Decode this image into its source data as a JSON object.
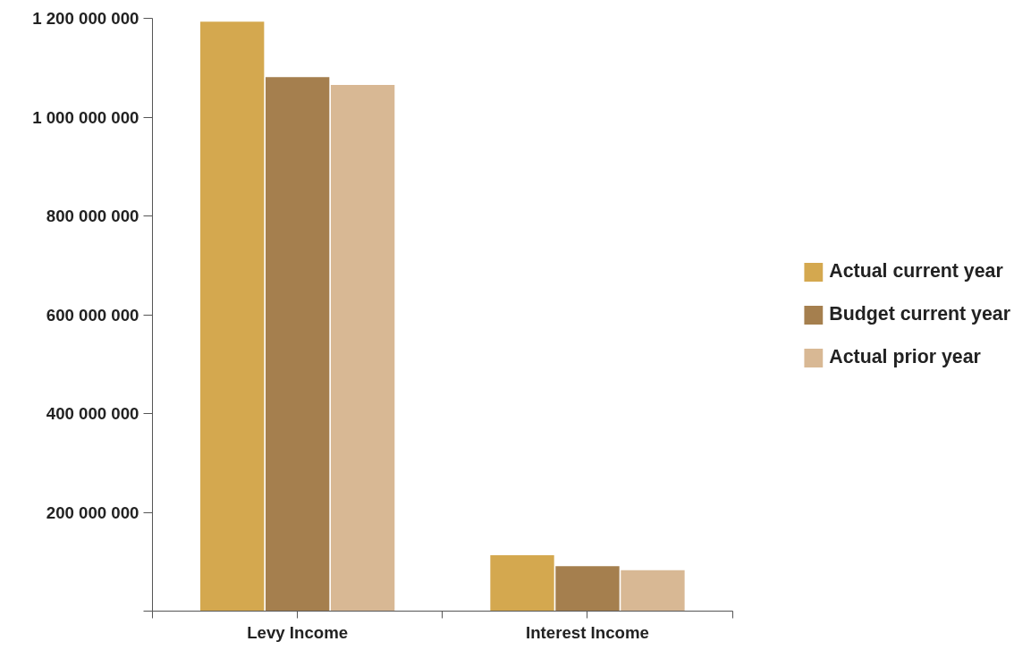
{
  "chart_data": {
    "type": "bar",
    "categories": [
      "Levy Income",
      "Interest Income"
    ],
    "series": [
      {
        "name": "Actual current year",
        "color": "#d4a84f",
        "values": [
          1193000000,
          113000000
        ]
      },
      {
        "name": "Budget current year",
        "color": "#a57f4e",
        "values": [
          1081000000,
          91000000
        ]
      },
      {
        "name": "Actual prior year",
        "color": "#d8b894",
        "values": [
          1065000000,
          83000000
        ]
      }
    ],
    "ylim": [
      0,
      1200000000
    ],
    "yticks": [
      {
        "value": 0,
        "label": null
      },
      {
        "value": 200000000,
        "label": "200 000 000"
      },
      {
        "value": 400000000,
        "label": "400 000 000"
      },
      {
        "value": 600000000,
        "label": "600 000 000"
      },
      {
        "value": 800000000,
        "label": "800 000 000"
      },
      {
        "value": 1000000000,
        "label": "1 000 000 000"
      },
      {
        "value": 1200000000,
        "label": "1 200 000 000"
      }
    ],
    "grid": false,
    "legend": "right"
  }
}
